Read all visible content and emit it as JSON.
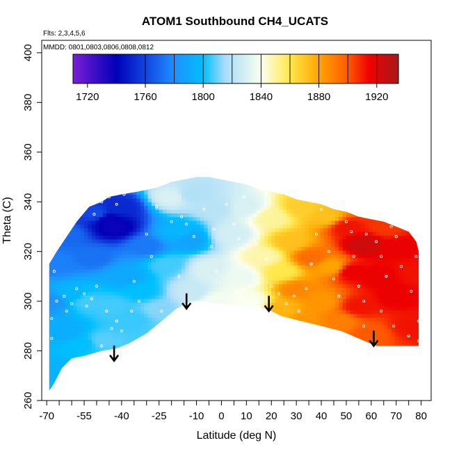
{
  "chart_data": {
    "type": "heatmap",
    "title": "ATOM1 Southbound CH4_UCATS",
    "subtitle_flights": "Flts: 2,3,4,5,6",
    "subtitle_dates": "MMDD: 0801,0803,0806,0808,0812",
    "xlabel": "Latitude (deg N)",
    "ylabel": "Theta (C)",
    "xlim": [
      -72,
      84
    ],
    "ylim": [
      260,
      405
    ],
    "x_ticks": [
      -70,
      -55,
      -40,
      -25,
      -10,
      0,
      10,
      20,
      30,
      40,
      50,
      60,
      70,
      80
    ],
    "x_ticks_labeled": [
      "-70",
      "-55",
      "-40",
      "-25",
      "-10",
      "0",
      "10",
      "20",
      "30",
      "40",
      "50",
      "60",
      "70",
      "80"
    ],
    "x_minor_ticks": [
      -65,
      -60,
      -50,
      -45,
      -35,
      -30,
      -20,
      -15,
      -5,
      5,
      15,
      25,
      35,
      45,
      55,
      65,
      75
    ],
    "y_ticks": [
      260,
      280,
      300,
      320,
      340,
      360,
      380,
      400
    ],
    "y_tick_labels": [
      "260",
      "280",
      "300",
      "320",
      "340",
      "360",
      "380",
      "400"
    ],
    "colorbar": {
      "range": [
        1710,
        1935
      ],
      "tick_values": [
        1720,
        1760,
        1800,
        1840,
        1880,
        1920
      ],
      "tick_labels": [
        "1720",
        "1760",
        "1800",
        "1840",
        "1880",
        "1920"
      ],
      "divisions": [
        1740,
        1760,
        1780,
        1800,
        1820,
        1840,
        1860,
        1880,
        1900,
        1920
      ],
      "color_stops": [
        {
          "value": 1710,
          "color": "#7a1fd6"
        },
        {
          "value": 1740,
          "color": "#0000b8"
        },
        {
          "value": 1760,
          "color": "#1144e0"
        },
        {
          "value": 1780,
          "color": "#1e90ff"
        },
        {
          "value": 1800,
          "color": "#00bfff"
        },
        {
          "value": 1815,
          "color": "#a8dcf8"
        },
        {
          "value": 1840,
          "color": "#fafff0"
        },
        {
          "value": 1860,
          "color": "#ffe84a"
        },
        {
          "value": 1880,
          "color": "#ffa500"
        },
        {
          "value": 1900,
          "color": "#ff5a00"
        },
        {
          "value": 1915,
          "color": "#ee0000"
        },
        {
          "value": 1935,
          "color": "#a61a1a"
        }
      ]
    },
    "field_region": {
      "upper_boundary": [
        [
          -69,
          315
        ],
        [
          -66,
          320
        ],
        [
          -62,
          326
        ],
        [
          -58,
          332
        ],
        [
          -53,
          338
        ],
        [
          -48,
          340
        ],
        [
          -45,
          342
        ],
        [
          -40,
          343
        ],
        [
          -34,
          344
        ],
        [
          -29,
          345
        ],
        [
          -25,
          346
        ],
        [
          -20,
          348
        ],
        [
          -15,
          349
        ],
        [
          -10,
          350
        ],
        [
          -5,
          350
        ],
        [
          0,
          349
        ],
        [
          5,
          348
        ],
        [
          10,
          347
        ],
        [
          15,
          345
        ],
        [
          20,
          344
        ],
        [
          25,
          343
        ],
        [
          30,
          341
        ],
        [
          35,
          340
        ],
        [
          40,
          339
        ],
        [
          45,
          337
        ],
        [
          50,
          336
        ],
        [
          55,
          334
        ],
        [
          60,
          333
        ],
        [
          65,
          332
        ],
        [
          70,
          330
        ],
        [
          75,
          328
        ],
        [
          78,
          324
        ],
        [
          79,
          320
        ]
      ],
      "lower_boundary": [
        [
          79,
          282
        ],
        [
          71,
          282
        ],
        [
          62,
          282
        ],
        [
          55,
          285
        ],
        [
          48,
          288
        ],
        [
          40,
          290
        ],
        [
          32,
          292
        ],
        [
          24,
          294
        ],
        [
          20,
          296
        ],
        [
          15,
          298
        ],
        [
          8,
          298
        ],
        [
          3,
          299
        ],
        [
          -3,
          299
        ],
        [
          -8,
          300
        ],
        [
          -12,
          300
        ],
        [
          -18,
          297
        ],
        [
          -24,
          292
        ],
        [
          -30,
          287
        ],
        [
          -37,
          283
        ],
        [
          -42,
          281
        ],
        [
          -48,
          280
        ],
        [
          -55,
          278
        ],
        [
          -60,
          277
        ],
        [
          -64,
          273
        ],
        [
          -67,
          267
        ],
        [
          -69,
          264
        ]
      ]
    },
    "field_nodes": [
      {
        "lat": -66,
        "theta": 272,
        "ch4": 1795
      },
      {
        "lat": -68,
        "theta": 300,
        "ch4": 1782
      },
      {
        "lat": -66,
        "theta": 315,
        "ch4": 1776
      },
      {
        "lat": -62,
        "theta": 327,
        "ch4": 1770
      },
      {
        "lat": -62,
        "theta": 288,
        "ch4": 1792
      },
      {
        "lat": -60,
        "theta": 303,
        "ch4": 1796
      },
      {
        "lat": -55,
        "theta": 283,
        "ch4": 1800
      },
      {
        "lat": -54,
        "theta": 300,
        "ch4": 1806
      },
      {
        "lat": -52,
        "theta": 318,
        "ch4": 1772
      },
      {
        "lat": -50,
        "theta": 335,
        "ch4": 1762
      },
      {
        "lat": -46,
        "theta": 333,
        "ch4": 1738
      },
      {
        "lat": -43,
        "theta": 330,
        "ch4": 1737
      },
      {
        "lat": -40,
        "theta": 338,
        "ch4": 1752
      },
      {
        "lat": -38,
        "theta": 310,
        "ch4": 1790
      },
      {
        "lat": -44,
        "theta": 298,
        "ch4": 1806
      },
      {
        "lat": -48,
        "theta": 284,
        "ch4": 1808
      },
      {
        "lat": -36,
        "theta": 293,
        "ch4": 1805
      },
      {
        "lat": -30,
        "theta": 322,
        "ch4": 1774
      },
      {
        "lat": -32,
        "theta": 304,
        "ch4": 1800
      },
      {
        "lat": -25,
        "theta": 297,
        "ch4": 1812
      },
      {
        "lat": -22,
        "theta": 315,
        "ch4": 1806
      },
      {
        "lat": -17,
        "theta": 328,
        "ch4": 1796
      },
      {
        "lat": -13,
        "theta": 325,
        "ch4": 1788
      },
      {
        "lat": -20,
        "theta": 342,
        "ch4": 1830
      },
      {
        "lat": -12,
        "theta": 343,
        "ch4": 1818
      },
      {
        "lat": -12,
        "theta": 304,
        "ch4": 1824
      },
      {
        "lat": -5,
        "theta": 313,
        "ch4": 1830
      },
      {
        "lat": -2,
        "theta": 300,
        "ch4": 1838
      },
      {
        "lat": -2,
        "theta": 338,
        "ch4": 1820
      },
      {
        "lat": 4,
        "theta": 327,
        "ch4": 1828
      },
      {
        "lat": 8,
        "theta": 310,
        "ch4": 1836
      },
      {
        "lat": 10,
        "theta": 338,
        "ch4": 1830
      },
      {
        "lat": 12,
        "theta": 300,
        "ch4": 1840
      },
      {
        "lat": 17,
        "theta": 318,
        "ch4": 1848
      },
      {
        "lat": 20,
        "theta": 334,
        "ch4": 1850
      },
      {
        "lat": 24,
        "theta": 312,
        "ch4": 1860
      },
      {
        "lat": 24,
        "theta": 297,
        "ch4": 1875
      },
      {
        "lat": 28,
        "theta": 324,
        "ch4": 1872
      },
      {
        "lat": 30,
        "theta": 305,
        "ch4": 1888
      },
      {
        "lat": 32,
        "theta": 338,
        "ch4": 1868
      },
      {
        "lat": 33,
        "theta": 292,
        "ch4": 1884
      },
      {
        "lat": 36,
        "theta": 318,
        "ch4": 1895
      },
      {
        "lat": 40,
        "theta": 300,
        "ch4": 1884
      },
      {
        "lat": 42,
        "theta": 334,
        "ch4": 1872
      },
      {
        "lat": 44,
        "theta": 314,
        "ch4": 1880
      },
      {
        "lat": 47,
        "theta": 292,
        "ch4": 1890
      },
      {
        "lat": 50,
        "theta": 330,
        "ch4": 1912
      },
      {
        "lat": 52,
        "theta": 312,
        "ch4": 1916
      },
      {
        "lat": 55,
        "theta": 298,
        "ch4": 1912
      },
      {
        "lat": 57,
        "theta": 323,
        "ch4": 1924
      },
      {
        "lat": 60,
        "theta": 287,
        "ch4": 1900
      },
      {
        "lat": 63,
        "theta": 310,
        "ch4": 1916
      },
      {
        "lat": 66,
        "theta": 330,
        "ch4": 1906
      },
      {
        "lat": 70,
        "theta": 302,
        "ch4": 1916
      },
      {
        "lat": 72,
        "theta": 322,
        "ch4": 1916
      },
      {
        "lat": 76,
        "theta": 290,
        "ch4": 1912
      },
      {
        "lat": 78,
        "theta": 312,
        "ch4": 1912
      }
    ],
    "sample_points": [
      [
        -68,
        293
      ],
      [
        -68,
        285
      ],
      [
        -67,
        312
      ],
      [
        -66,
        300
      ],
      [
        -63,
        302
      ],
      [
        -62,
        296
      ],
      [
        -60,
        299
      ],
      [
        -58,
        305
      ],
      [
        -55,
        303
      ],
      [
        -54,
        298
      ],
      [
        -52,
        301
      ],
      [
        -50,
        306
      ],
      [
        -46,
        296
      ],
      [
        -44,
        289
      ],
      [
        -42,
        292
      ],
      [
        -40,
        288
      ],
      [
        -48,
        282
      ],
      [
        -36,
        296
      ],
      [
        -35,
        308
      ],
      [
        -33,
        300
      ],
      [
        -51,
        335
      ],
      [
        -48,
        340
      ],
      [
        -45,
        342
      ],
      [
        -42,
        339
      ],
      [
        -39,
        343
      ],
      [
        -30,
        327
      ],
      [
        -26,
        338
      ],
      [
        -20,
        332
      ],
      [
        -16,
        334
      ],
      [
        -14,
        331
      ],
      [
        -11,
        326
      ],
      [
        -17,
        310
      ],
      [
        -7,
        337
      ],
      [
        -3,
        329
      ],
      [
        -4,
        322
      ],
      [
        2,
        339
      ],
      [
        5,
        331
      ],
      [
        7,
        325
      ],
      [
        9,
        342
      ],
      [
        12,
        331
      ],
      [
        14,
        323
      ],
      [
        15,
        307
      ],
      [
        18,
        317
      ],
      [
        20,
        306
      ],
      [
        23,
        303
      ],
      [
        26,
        299
      ],
      [
        29,
        302
      ],
      [
        31,
        296
      ],
      [
        34,
        305
      ],
      [
        36,
        315
      ],
      [
        38,
        327
      ],
      [
        40,
        337
      ],
      [
        43,
        320
      ],
      [
        45,
        309
      ],
      [
        47,
        302
      ],
      [
        50,
        332
      ],
      [
        52,
        328
      ],
      [
        53,
        318
      ],
      [
        55,
        306
      ],
      [
        57,
        300
      ],
      [
        58,
        327
      ],
      [
        60,
        336
      ],
      [
        62,
        324
      ],
      [
        64,
        318
      ],
      [
        66,
        310
      ],
      [
        68,
        330
      ],
      [
        70,
        326
      ],
      [
        72,
        314
      ],
      [
        74,
        333
      ],
      [
        76,
        304
      ],
      [
        78,
        318
      ],
      [
        79,
        292
      ],
      [
        79,
        284
      ],
      [
        75,
        286
      ],
      [
        69,
        290
      ],
      [
        64,
        296
      ],
      [
        57,
        290
      ],
      [
        -24,
        296
      ],
      [
        -28,
        318
      ],
      [
        -2,
        312
      ],
      [
        6,
        304
      ]
    ],
    "arrows": [
      {
        "lat": -43,
        "theta": 276
      },
      {
        "lat": -14,
        "theta": 297
      },
      {
        "lat": 19,
        "theta": 296
      },
      {
        "lat": 61,
        "theta": 282
      }
    ]
  }
}
